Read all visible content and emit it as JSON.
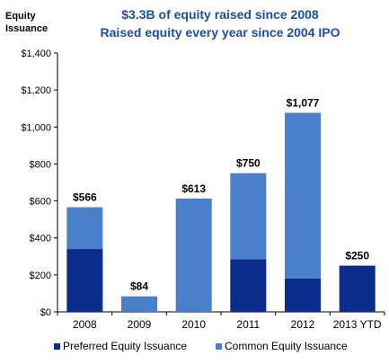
{
  "chart_data": {
    "type": "bar",
    "stacked": true,
    "title_lines": [
      "$3.3B of equity raised since 2008",
      "Raised equity every year since 2004 IPO"
    ],
    "ylabel_lines": [
      "Equity",
      "Issuance"
    ],
    "xlabel": "",
    "categories": [
      "2008",
      "2009",
      "2010",
      "2011",
      "2012",
      "2013 YTD"
    ],
    "ylim": [
      0,
      1400
    ],
    "ytick_values": [
      0,
      200,
      400,
      600,
      800,
      1000,
      1200,
      1400
    ],
    "ytick_labels": [
      "$0",
      "$200",
      "$400",
      "$600",
      "$800",
      "$1,000",
      "$1,200",
      "$1,400"
    ],
    "series": [
      {
        "name": "Preferred Equity Issuance",
        "color": "#0a2d8c",
        "values": [
          340,
          0,
          0,
          285,
          180,
          250
        ]
      },
      {
        "name": "Common Equity Issuance",
        "color": "#4a7fcc",
        "values": [
          226,
          84,
          613,
          465,
          897,
          0
        ]
      }
    ],
    "total_labels": [
      "$566",
      "$84",
      "$613",
      "$750",
      "$1,077",
      "$250"
    ],
    "grid": false,
    "legend_position": "bottom",
    "title_color": "#1f4e9a"
  }
}
